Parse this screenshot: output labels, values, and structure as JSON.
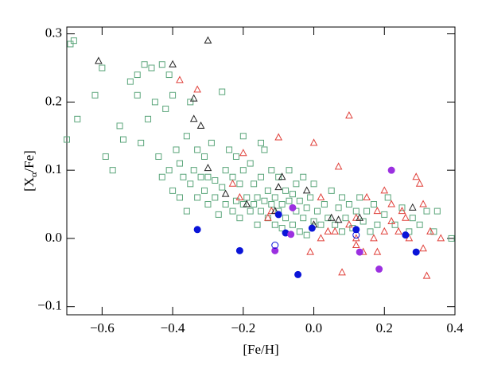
{
  "chart_data": {
    "type": "scatter",
    "x_label": "[Fe/H]",
    "y_label_parts": [
      "[X",
      "α",
      "/Fe]"
    ],
    "xlim": [
      -0.7,
      0.4
    ],
    "ylim": [
      -0.112,
      0.31
    ],
    "xticks": [
      {
        "value": -0.6,
        "label": "−0.6"
      },
      {
        "value": -0.4,
        "label": "−0.4"
      },
      {
        "value": -0.2,
        "label": "−0.2"
      },
      {
        "value": 0,
        "label": "0.0"
      },
      0.2,
      0.4
    ],
    "yticks": [
      {
        "value": -0.1,
        "label": "−0.1"
      },
      {
        "value": 0,
        "label": "0.0"
      },
      0.1,
      0.2,
      0.3
    ],
    "series": [
      {
        "color": "#5aa57a",
        "marker": "square",
        "filled": false,
        "x": [
          -0.69,
          -0.68,
          -0.7,
          -0.67,
          -0.62,
          -0.6,
          -0.59,
          -0.57,
          -0.55,
          -0.54,
          -0.52,
          -0.5,
          -0.5,
          -0.49,
          -0.48,
          -0.47,
          -0.46,
          -0.45,
          -0.44,
          -0.43,
          -0.43,
          -0.42,
          -0.41,
          -0.41,
          -0.4,
          -0.4,
          -0.39,
          -0.38,
          -0.38,
          -0.37,
          -0.36,
          -0.36,
          -0.35,
          -0.35,
          -0.34,
          -0.33,
          -0.33,
          -0.32,
          -0.31,
          -0.31,
          -0.3,
          -0.3,
          -0.29,
          -0.28,
          -0.28,
          -0.27,
          -0.26,
          -0.26,
          -0.25,
          -0.25,
          -0.24,
          -0.23,
          -0.23,
          -0.22,
          -0.22,
          -0.21,
          -0.21,
          -0.2,
          -0.2,
          -0.19,
          -0.18,
          -0.18,
          -0.17,
          -0.17,
          -0.16,
          -0.16,
          -0.15,
          -0.15,
          -0.14,
          -0.14,
          -0.13,
          -0.13,
          -0.12,
          -0.12,
          -0.11,
          -0.11,
          -0.1,
          -0.1,
          -0.09,
          -0.09,
          -0.08,
          -0.08,
          -0.07,
          -0.07,
          -0.06,
          -0.06,
          -0.05,
          -0.05,
          -0.04,
          -0.04,
          -0.03,
          -0.03,
          -0.02,
          -0.02,
          -0.01,
          0.0,
          0.0,
          0.01,
          0.02,
          0.03,
          0.04,
          0.05,
          0.06,
          0.07,
          0.08,
          0.08,
          0.09,
          0.1,
          0.11,
          0.12,
          0.13,
          0.14,
          0.15,
          0.16,
          0.17,
          0.18,
          0.2,
          0.21,
          0.23,
          0.25,
          0.27,
          0.28,
          0.3,
          0.32,
          0.34,
          0.35,
          0.39,
          -0.15,
          -0.2
        ],
        "values": [
          0.285,
          0.29,
          0.145,
          0.175,
          0.21,
          0.25,
          0.12,
          0.1,
          0.165,
          0.145,
          0.23,
          0.21,
          0.24,
          0.14,
          0.255,
          0.175,
          0.25,
          0.2,
          0.12,
          0.09,
          0.255,
          0.19,
          0.1,
          0.24,
          0.07,
          0.21,
          0.13,
          0.11,
          0.06,
          0.09,
          0.15,
          0.04,
          0.08,
          0.2,
          0.1,
          0.13,
          0.06,
          0.09,
          0.07,
          0.12,
          0.05,
          0.09,
          0.14,
          0.085,
          0.06,
          0.035,
          0.075,
          0.215,
          0.05,
          0.1,
          0.13,
          0.04,
          0.09,
          0.055,
          0.12,
          0.03,
          0.08,
          0.05,
          0.1,
          0.06,
          0.04,
          0.11,
          0.05,
          0.08,
          0.02,
          0.06,
          0.04,
          0.09,
          0.055,
          0.13,
          0.03,
          0.07,
          0.05,
          0.1,
          0.02,
          0.06,
          0.04,
          0.09,
          0.05,
          0.015,
          0.03,
          0.07,
          0.055,
          0.1,
          0.02,
          0.065,
          0.04,
          0.08,
          0.01,
          0.055,
          0.03,
          0.09,
          0.045,
          0.005,
          0.06,
          0.025,
          0.08,
          0.04,
          0.02,
          0.05,
          0.03,
          0.07,
          0.02,
          0.045,
          0.01,
          0.06,
          0.03,
          0.05,
          0.015,
          0.04,
          0.06,
          0.025,
          0.04,
          0.01,
          0.05,
          0.02,
          0.035,
          0.06,
          0.02,
          0.045,
          0.01,
          0.03,
          0.02,
          0.04,
          0.01,
          0.04,
          0.0,
          0.14,
          0.15
        ]
      },
      {
        "color": "#e0403a",
        "marker": "triangle",
        "filled": false,
        "x": [
          -0.38,
          -0.33,
          -0.2,
          -0.1,
          0.0,
          0.07,
          0.1,
          -0.23,
          -0.21,
          -0.12,
          0.02,
          0.04,
          0.06,
          0.1,
          0.12,
          0.12,
          0.12,
          0.15,
          0.17,
          0.18,
          0.18,
          0.2,
          0.22,
          0.22,
          0.24,
          0.25,
          0.26,
          0.27,
          0.3,
          0.31,
          0.31,
          0.33,
          0.32,
          0.36,
          0.08,
          0.14,
          0.2,
          0.29,
          -0.01,
          0.02,
          -0.13
        ],
        "values": [
          0.232,
          0.218,
          0.125,
          0.148,
          0.14,
          0.105,
          0.18,
          0.08,
          0.06,
          0.04,
          0.06,
          0.01,
          0.01,
          0.02,
          0.03,
          0.0,
          -0.01,
          0.06,
          0.0,
          -0.02,
          0.04,
          0.07,
          0.025,
          0.05,
          0.01,
          0.04,
          0.03,
          0.0,
          0.08,
          -0.015,
          0.05,
          0.01,
          -0.055,
          0.0,
          -0.05,
          -0.02,
          0.01,
          0.09,
          -0.02,
          0.0,
          0.03
        ]
      },
      {
        "color": "#222222",
        "marker": "triangle",
        "filled": false,
        "x": [
          -0.3,
          -0.61,
          -0.4,
          -0.34,
          -0.34,
          -0.32,
          -0.3,
          -0.25,
          -0.19,
          -0.1,
          -0.11,
          -0.02,
          0.05,
          0.07,
          0.28,
          0.13,
          -0.09,
          0.0
        ],
        "values": [
          0.29,
          0.26,
          0.255,
          0.205,
          0.175,
          0.165,
          0.103,
          0.065,
          0.05,
          0.075,
          0.04,
          0.07,
          0.03,
          0.027,
          0.045,
          0.03,
          0.09,
          0.02
        ]
      },
      {
        "color": "#0a14d8",
        "marker": "circle",
        "filled": true,
        "x": [
          -0.33,
          -0.21,
          -0.1,
          -0.08,
          -0.045,
          -0.005,
          0.12,
          0.26,
          0.29
        ],
        "values": [
          0.013,
          -0.018,
          0.035,
          0.008,
          -0.053,
          0.015,
          0.013,
          0.005,
          -0.02
        ]
      },
      {
        "color": "#9b30e0",
        "marker": "circle",
        "filled": true,
        "x": [
          -0.06,
          -0.065,
          -0.11,
          0.13,
          0.185,
          0.22
        ],
        "values": [
          0.045,
          0.006,
          -0.018,
          -0.02,
          -0.045,
          0.1
        ]
      },
      {
        "color": "#0a14d8",
        "marker": "circle",
        "filled": false,
        "x": [
          -0.11,
          0.12
        ],
        "values": [
          -0.01,
          0.005
        ]
      }
    ]
  }
}
